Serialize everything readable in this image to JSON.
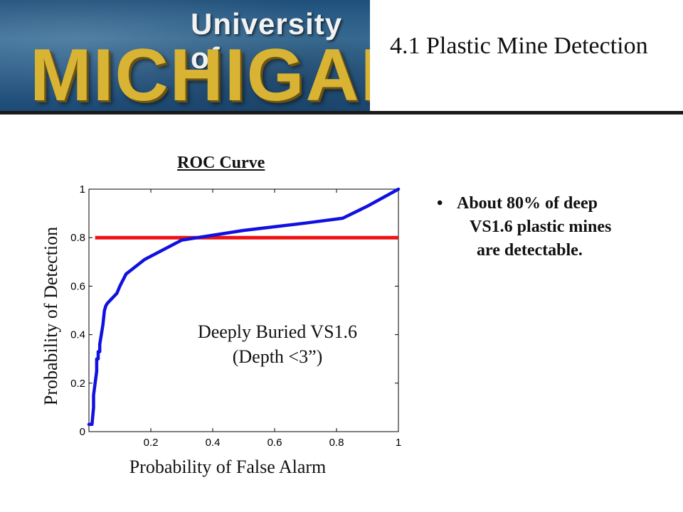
{
  "logo": {
    "top_text": "University of",
    "main_text": "MICHIGAN"
  },
  "slide": {
    "title": "4.1 Plastic Mine Detection"
  },
  "bullet": {
    "marker": "•",
    "line1": "About 80% of deep",
    "line2": "VS1.6 plastic mines",
    "line3": "are detectable."
  },
  "colors": {
    "curve": "#1010e0",
    "threshold": "#ee1111",
    "axis": "#000000"
  },
  "chart_data": {
    "type": "line",
    "title": "ROC Curve",
    "xlabel": "Probability of False Alarm",
    "ylabel": "Probability of Detection",
    "xlim": [
      0,
      1
    ],
    "ylim": [
      0,
      1
    ],
    "xticks": [
      0.2,
      0.4,
      0.6,
      0.8,
      1
    ],
    "xtick_labels": [
      "0.2",
      "0.4",
      "0.6",
      "0.8",
      "1"
    ],
    "yticks": [
      0,
      0.2,
      0.4,
      0.6,
      0.8,
      1
    ],
    "ytick_labels": [
      "0",
      "0.2",
      "0.4",
      "0.6",
      "0.8",
      "1"
    ],
    "grid": false,
    "annotation_line1": "Deeply Buried VS1.6",
    "annotation_line2": "(Depth <3”)",
    "series": [
      {
        "x": [
          0,
          0.01,
          0.015,
          0.015,
          0.02,
          0.025,
          0.025,
          0.03,
          0.03,
          0.035,
          0.035,
          0.04,
          0.045,
          0.05,
          0.055,
          0.06,
          0.075,
          0.09,
          0.1,
          0.12,
          0.18,
          0.3,
          0.5,
          0.7,
          0.82,
          0.9,
          1
        ],
        "y": [
          0.03,
          0.03,
          0.1,
          0.15,
          0.2,
          0.25,
          0.3,
          0.3,
          0.33,
          0.33,
          0.36,
          0.4,
          0.44,
          0.5,
          0.52,
          0.53,
          0.55,
          0.57,
          0.6,
          0.65,
          0.71,
          0.79,
          0.83,
          0.86,
          0.88,
          0.93,
          1
        ]
      },
      {
        "x": [
          0.02,
          1
        ],
        "y": [
          0.8,
          0.8
        ]
      }
    ]
  }
}
